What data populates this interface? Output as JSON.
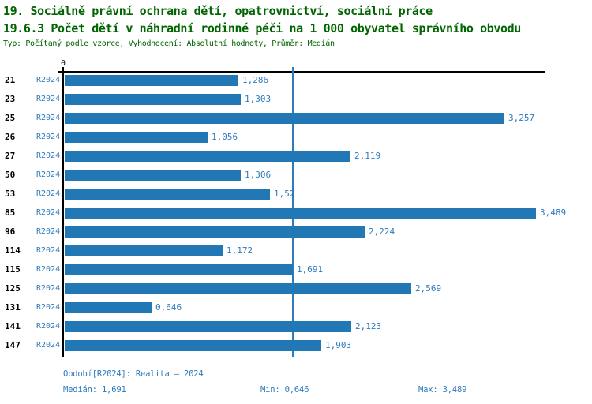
{
  "header": {
    "title_line1": "19. Sociálně právní ochrana dětí, opatrovnictví, sociální práce",
    "title_line2": "19.6.3 Počet dětí v náhradní rodinné péči na 1 000 obyvatel správního obvodu",
    "subtitle": "Typ: Počítaný podle vzorce, Vyhodnocení: Absolutní hodnoty, Průměr: Medián"
  },
  "chart_data": {
    "type": "bar",
    "orientation": "horizontal",
    "title": "19.6.3 Počet dětí v náhradní rodinné péči na 1 000 obyvatel správního obvodu",
    "axis_zero_label": "0",
    "period_label": "R2024",
    "categories": [
      "21",
      "23",
      "25",
      "26",
      "27",
      "50",
      "53",
      "85",
      "96",
      "114",
      "115",
      "125",
      "131",
      "141",
      "147"
    ],
    "values": [
      1.286,
      1.303,
      3.257,
      1.056,
      2.119,
      1.306,
      1.52,
      3.489,
      2.224,
      1.172,
      1.691,
      2.569,
      0.646,
      2.123,
      1.903
    ],
    "value_labels": [
      "1,286",
      "1,303",
      "3,257",
      "1,056",
      "2,119",
      "1,306",
      "1,52",
      "3,489",
      "2,224",
      "1,172",
      "1,691",
      "2,569",
      "0,646",
      "2,123",
      "1,903"
    ],
    "median": 1.691,
    "min": 0.646,
    "max": 3.489,
    "xlim": [
      0,
      3.6
    ],
    "grid": false,
    "legend_position": "none",
    "bar_color": "#2277b5",
    "median_line_color": "#2f7cbd",
    "label_color": "#2e7bbe",
    "axis_color": "#000000",
    "title_color": "#006400"
  },
  "footer": {
    "period": "Období[R2024]: Realita – 2024",
    "median": "Medián: 1,691",
    "min": "Min: 0,646",
    "max": "Max: 3,489"
  }
}
